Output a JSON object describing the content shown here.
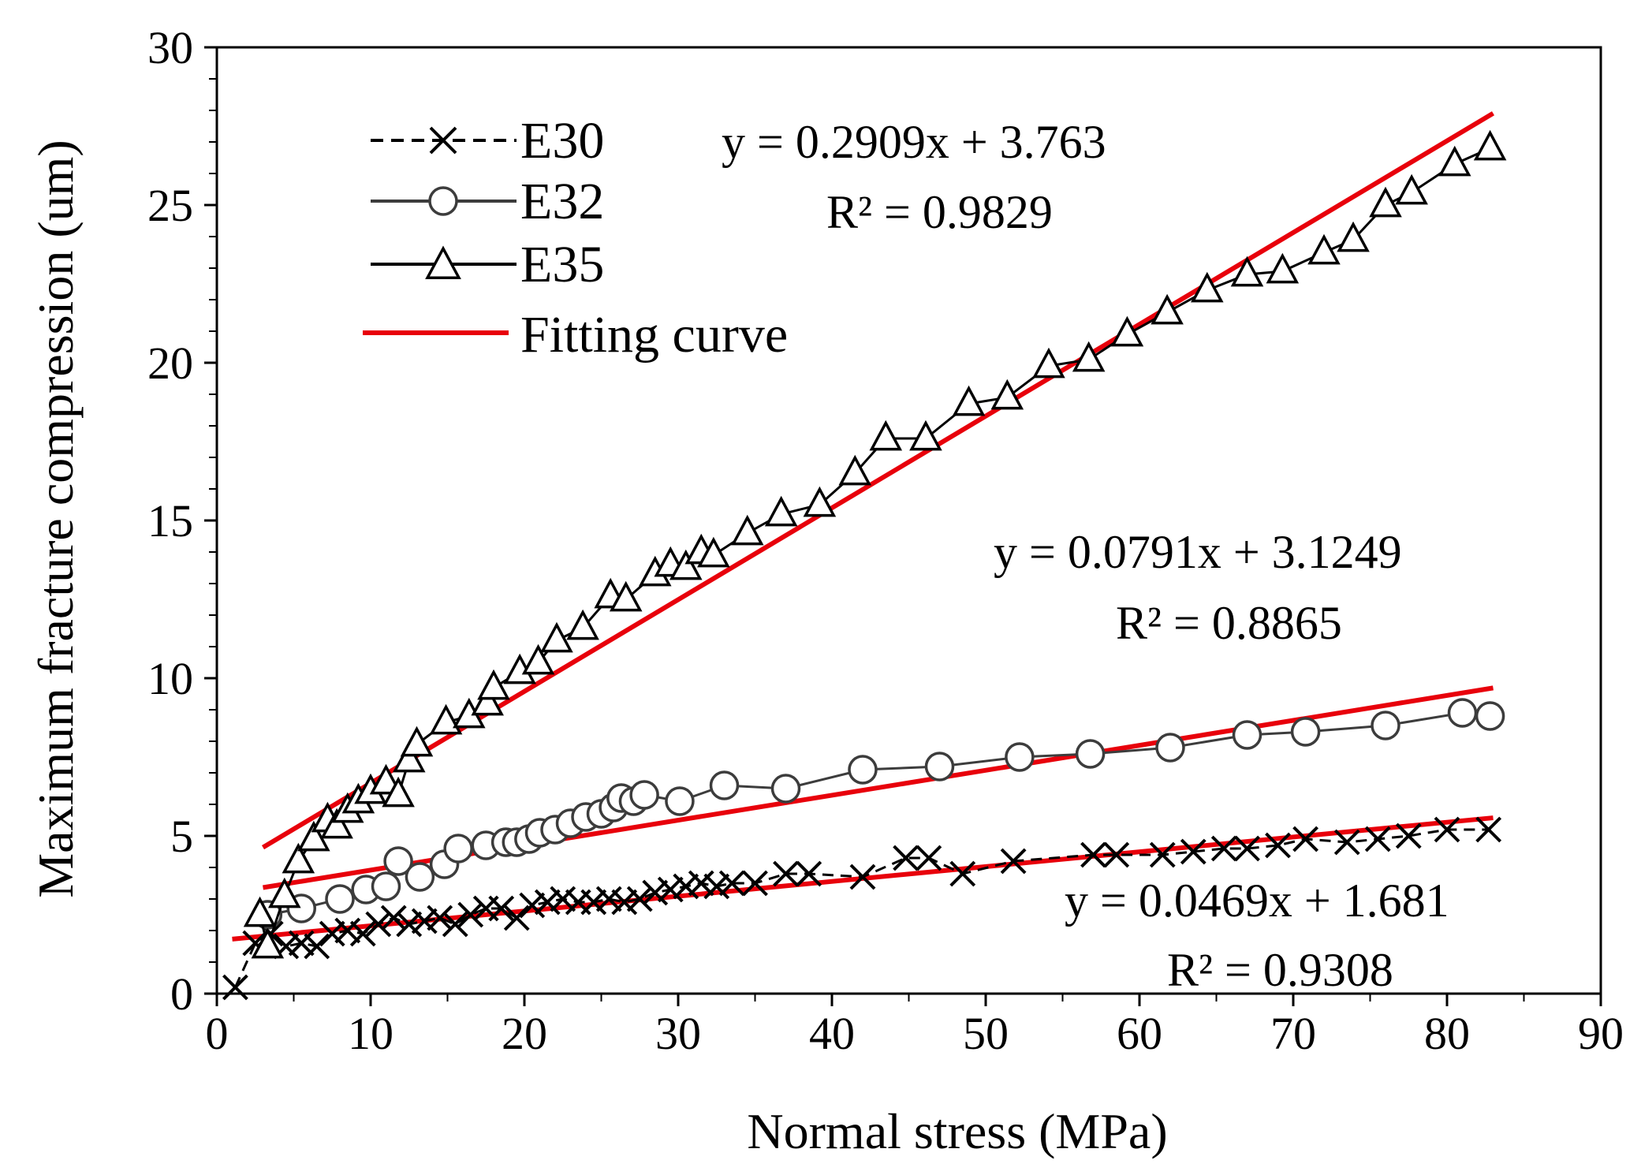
{
  "chart_data": {
    "type": "line",
    "title": "",
    "xlabel": "Normal stress (MPa)",
    "ylabel": "Maximum fracture compression (um)",
    "xlim": [
      0,
      90
    ],
    "ylim": [
      0,
      30
    ],
    "xticks": [
      "0",
      "10",
      "20",
      "30",
      "40",
      "50",
      "60",
      "70",
      "80",
      "90"
    ],
    "yticks": [
      "0",
      "5",
      "10",
      "15",
      "20",
      "25",
      "30"
    ],
    "grid": false,
    "legend_position": "top-left",
    "legend": [
      "E30",
      "E32",
      "E35",
      "Fitting curve"
    ],
    "fit_color": "#e8000b",
    "series_colors": {
      "E30": "#000000",
      "E32": "#3c3c3c",
      "E35": "#000000"
    },
    "series": [
      {
        "name": "E30",
        "marker": "x",
        "line": "dashed",
        "x": [
          1.2,
          2.5,
          3.5,
          4.5,
          5.5,
          6.5,
          7.5,
          8.5,
          9.5,
          10.5,
          11.5,
          12.5,
          13.5,
          14.5,
          15.5,
          16.5,
          17.5,
          18.5,
          19.5,
          20.5,
          21.5,
          22.5,
          23.5,
          24.5,
          25.5,
          26.5,
          27.5,
          28.5,
          29.5,
          30.5,
          31.5,
          32.5,
          33.5,
          35,
          37,
          38.5,
          42,
          44.8,
          46.3,
          48.5,
          51.8,
          57,
          58.5,
          61.5,
          63.5,
          65.5,
          67,
          69,
          70.8,
          73.5,
          75.5,
          77.5,
          80,
          82.7
        ],
        "y": [
          0.2,
          1.6,
          1.9,
          1.5,
          1.6,
          1.5,
          1.9,
          2.0,
          1.9,
          2.2,
          2.4,
          2.2,
          2.3,
          2.4,
          2.2,
          2.5,
          2.7,
          2.7,
          2.4,
          2.8,
          2.9,
          3.0,
          2.9,
          2.9,
          3.0,
          2.9,
          3.0,
          3.2,
          3.3,
          3.4,
          3.5,
          3.4,
          3.5,
          3.5,
          3.8,
          3.8,
          3.7,
          4.3,
          4.3,
          3.8,
          4.2,
          4.4,
          4.4,
          4.4,
          4.5,
          4.6,
          4.6,
          4.7,
          4.9,
          4.8,
          4.9,
          5.0,
          5.2,
          5.2
        ]
      },
      {
        "name": "E32",
        "marker": "circle",
        "line": "solid",
        "x": [
          3.3,
          5.5,
          8,
          9.7,
          11,
          11.8,
          13.2,
          14.8,
          15.7,
          17.5,
          18.8,
          19.5,
          20.3,
          21,
          22,
          23,
          24,
          25,
          25.8,
          26.3,
          27.1,
          27.8,
          30.1,
          33,
          37,
          42,
          47,
          52.2,
          56.8,
          62,
          67,
          70.8,
          76,
          81,
          82.8
        ],
        "y": [
          2.5,
          2.7,
          3.0,
          3.3,
          3.4,
          4.2,
          3.7,
          4.1,
          4.6,
          4.7,
          4.8,
          4.8,
          4.9,
          5.1,
          5.2,
          5.4,
          5.6,
          5.7,
          5.9,
          6.2,
          6.1,
          6.3,
          6.1,
          6.6,
          6.5,
          7.1,
          7.2,
          7.5,
          7.6,
          7.8,
          8.2,
          8.3,
          8.5,
          8.9,
          8.8
        ]
      },
      {
        "name": "E35",
        "marker": "triangle",
        "line": "solid",
        "x": [
          2.8,
          3.3,
          4.4,
          5.3,
          6.3,
          7.2,
          7.8,
          8.5,
          9.2,
          10,
          11,
          11.8,
          12.5,
          13,
          14.9,
          16.4,
          17.6,
          18,
          19.7,
          20.9,
          22.1,
          23.8,
          25.6,
          26.6,
          28.5,
          29.5,
          30.5,
          31.5,
          32.3,
          34.5,
          36.7,
          39.2,
          41.5,
          43.5,
          46.1,
          48.9,
          51.4,
          54.1,
          56.7,
          59.2,
          61.8,
          64.4,
          67,
          69.3,
          72,
          73.9,
          76,
          77.7,
          80.5,
          82.8
        ],
        "y": [
          2.5,
          1.5,
          3.1,
          4.2,
          4.9,
          5.5,
          5.3,
          5.8,
          6.1,
          6.4,
          6.7,
          6.3,
          7.4,
          7.9,
          8.6,
          8.8,
          9.2,
          9.7,
          10.2,
          10.5,
          11.2,
          11.6,
          12.6,
          12.5,
          13.3,
          13.6,
          13.5,
          14.0,
          13.9,
          14.6,
          15.2,
          15.5,
          16.5,
          17.6,
          17.6,
          18.7,
          18.9,
          19.9,
          20.1,
          20.9,
          21.6,
          22.3,
          22.8,
          22.9,
          23.5,
          23.9,
          25.0,
          25.4,
          26.3,
          26.8
        ]
      }
    ],
    "fits": [
      {
        "series": "E35",
        "slope": 0.2909,
        "intercept": 3.763,
        "x_range": [
          3,
          83
        ],
        "equation": "y = 0.2909x + 3.763",
        "r2": "R² = 0.9829"
      },
      {
        "series": "E32",
        "slope": 0.0791,
        "intercept": 3.1249,
        "x_range": [
          3,
          83
        ],
        "equation": "y = 0.0791x + 3.1249",
        "r2": "R² = 0.8865"
      },
      {
        "series": "E30",
        "slope": 0.0469,
        "intercept": 1.681,
        "x_range": [
          1,
          83
        ],
        "equation": "y = 0.0469x + 1.681",
        "r2": "R² = 0.9308"
      }
    ]
  }
}
